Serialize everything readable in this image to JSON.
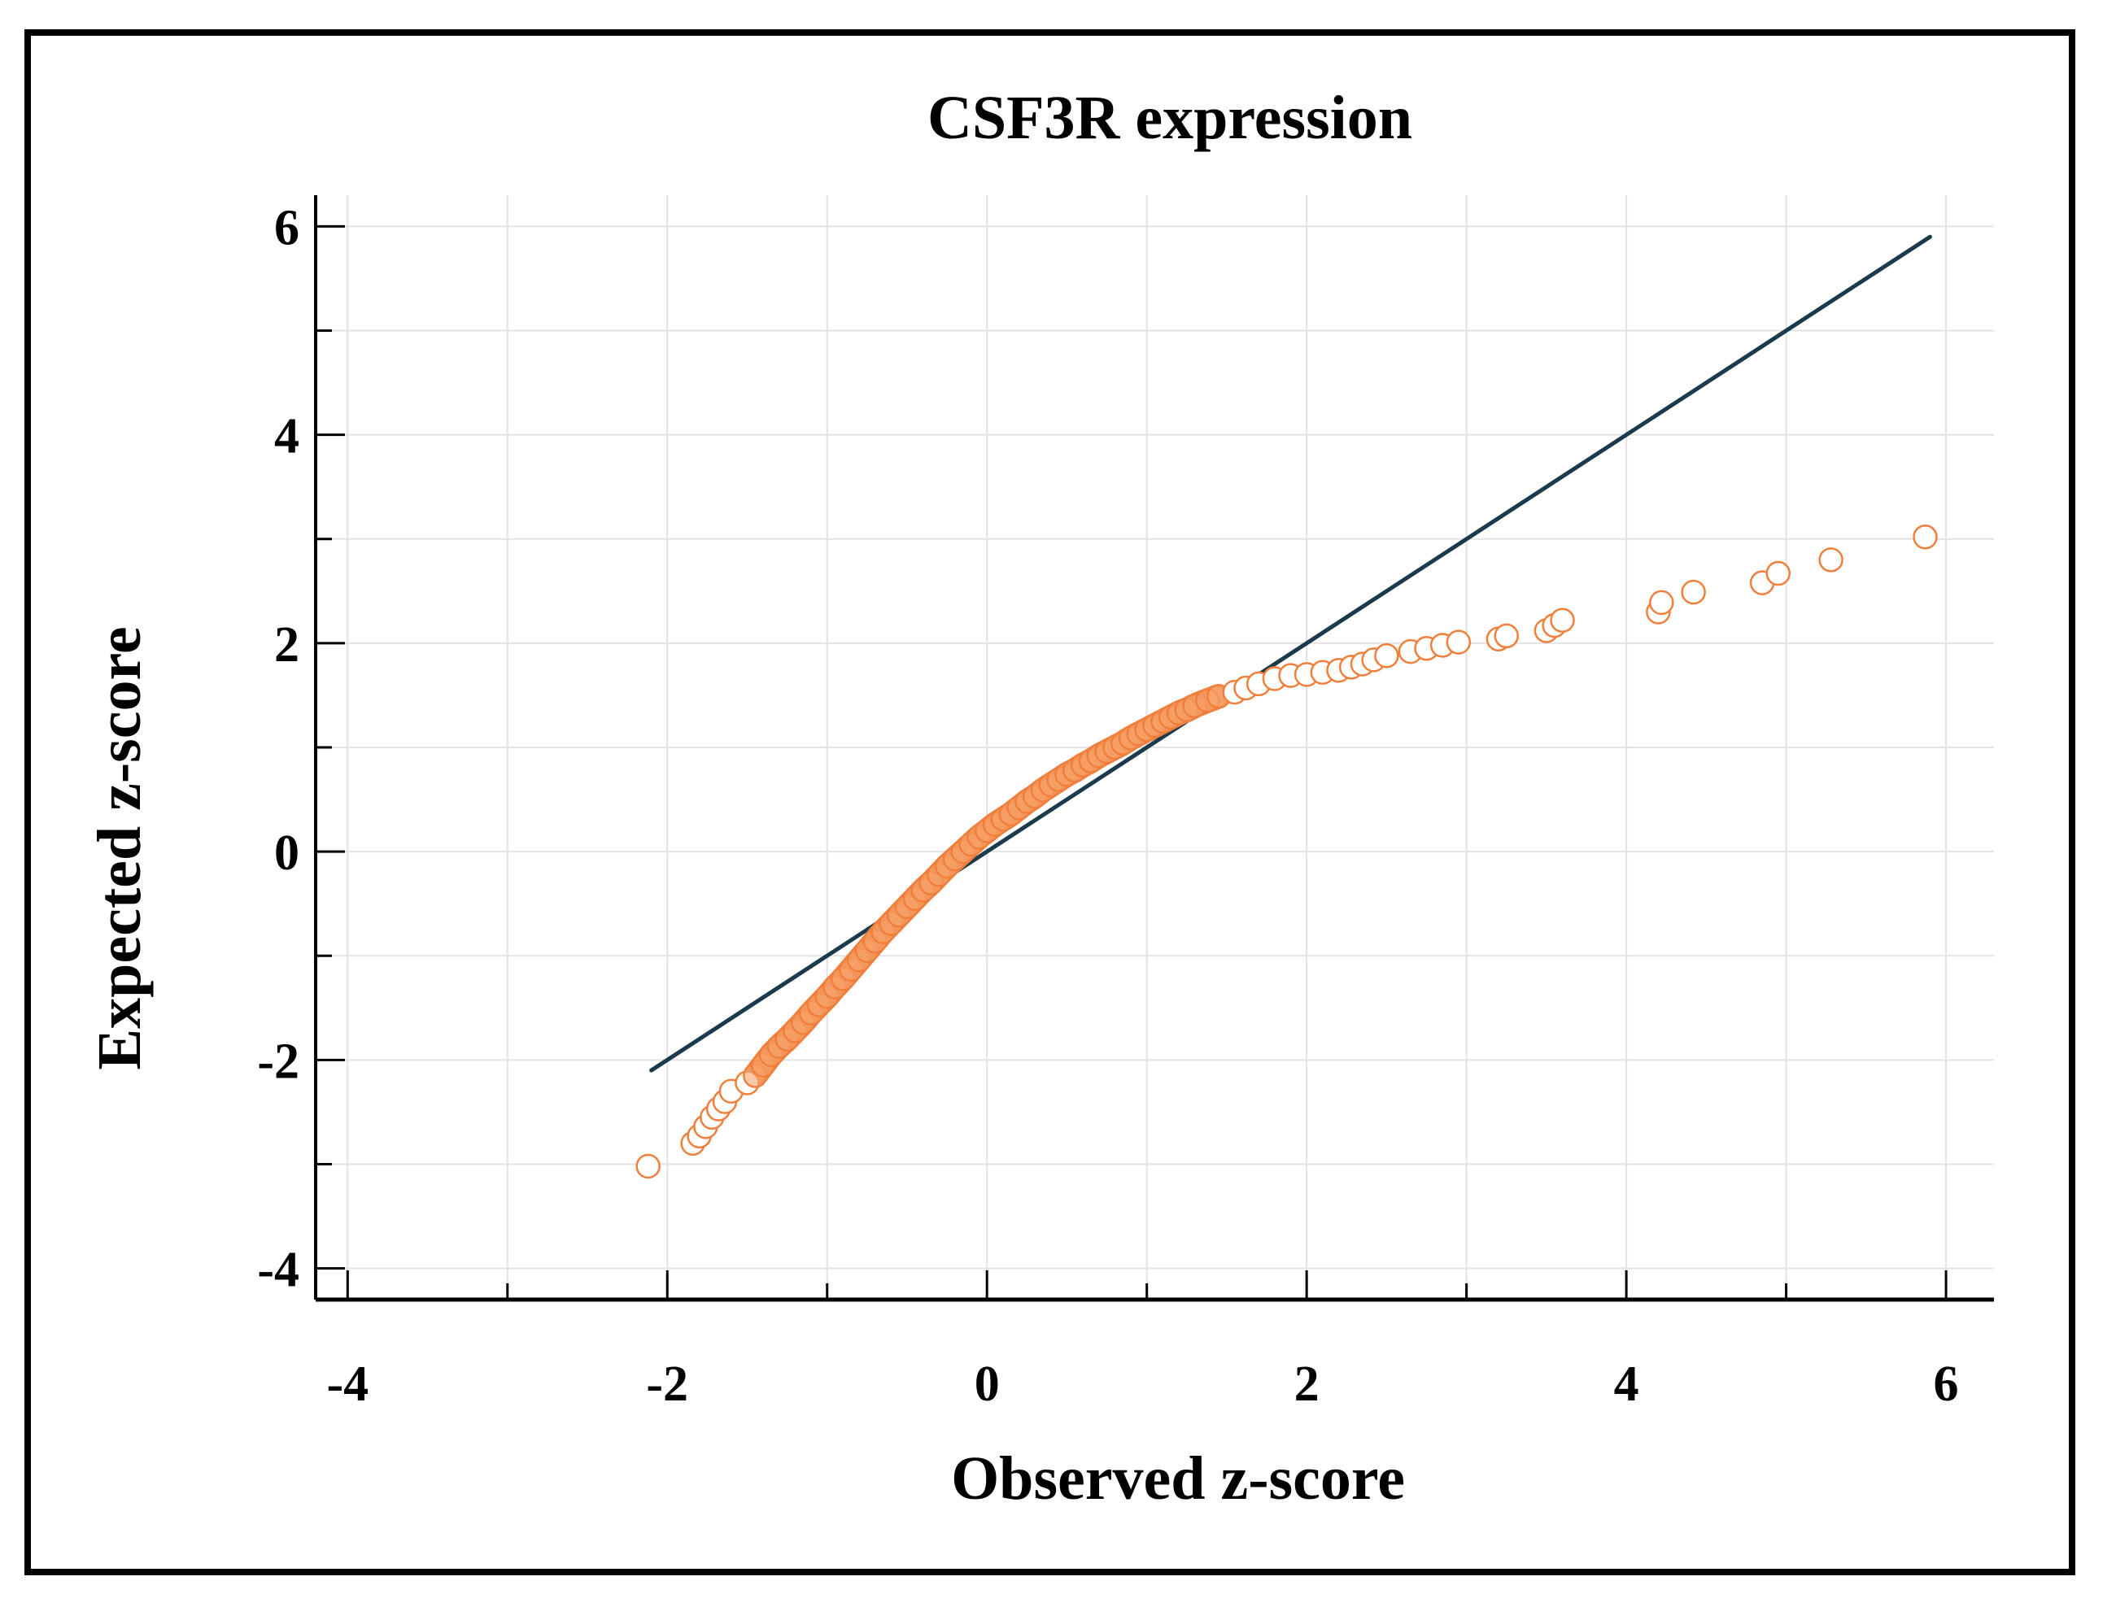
{
  "chart_data": {
    "type": "scatter",
    "title": "CSF3R expression",
    "xlabel": "Observed z-score",
    "ylabel": "Expected z-score",
    "xlim": [
      -4.2,
      6.3
    ],
    "ylim": [
      -4.3,
      6.3
    ],
    "xticks": [
      "-4",
      "-2",
      "0",
      "2",
      "4",
      "6"
    ],
    "yticks": [
      "6",
      "4",
      "2",
      "0",
      "-2",
      "-4"
    ],
    "xtick_values": [
      -4,
      -2,
      0,
      2,
      4,
      6
    ],
    "ytick_values": [
      6,
      4,
      2,
      0,
      -2,
      -4
    ],
    "grid": true,
    "reference_line": {
      "name": "identity line",
      "x": [
        -2.1,
        5.9
      ],
      "y": [
        -2.1,
        5.9
      ],
      "color": "#1b3a4b"
    },
    "series": [
      {
        "name": "observations",
        "marker": "open-circle",
        "color": "#f07f3c",
        "points": [
          [
            -2.12,
            -3.02
          ],
          [
            -1.84,
            -2.8
          ],
          [
            -1.8,
            -2.73
          ],
          [
            -1.76,
            -2.64
          ],
          [
            -1.72,
            -2.55
          ],
          [
            -1.68,
            -2.47
          ],
          [
            -1.64,
            -2.4
          ],
          [
            -1.6,
            -2.3
          ],
          [
            -1.5,
            -2.22
          ],
          [
            -1.45,
            -2.15
          ],
          [
            -1.4,
            -2.05
          ],
          [
            -1.35,
            -1.95
          ],
          [
            -1.3,
            -1.87
          ],
          [
            -1.25,
            -1.8
          ],
          [
            -1.2,
            -1.72
          ],
          [
            -1.15,
            -1.64
          ],
          [
            -1.1,
            -1.55
          ],
          [
            -1.05,
            -1.47
          ],
          [
            -1.0,
            -1.39
          ],
          [
            -0.95,
            -1.3
          ],
          [
            -0.9,
            -1.22
          ],
          [
            -0.85,
            -1.13
          ],
          [
            -0.8,
            -1.04
          ],
          [
            -0.75,
            -0.95
          ],
          [
            -0.7,
            -0.86
          ],
          [
            -0.65,
            -0.77
          ],
          [
            -0.6,
            -0.69
          ],
          [
            -0.55,
            -0.61
          ],
          [
            -0.5,
            -0.53
          ],
          [
            -0.45,
            -0.45
          ],
          [
            -0.4,
            -0.37
          ],
          [
            -0.35,
            -0.3
          ],
          [
            -0.3,
            -0.22
          ],
          [
            -0.25,
            -0.14
          ],
          [
            -0.2,
            -0.07
          ],
          [
            -0.15,
            0.0
          ],
          [
            -0.1,
            0.07
          ],
          [
            -0.05,
            0.14
          ],
          [
            0.0,
            0.2
          ],
          [
            0.05,
            0.26
          ],
          [
            0.1,
            0.31
          ],
          [
            0.15,
            0.36
          ],
          [
            0.2,
            0.42
          ],
          [
            0.25,
            0.48
          ],
          [
            0.3,
            0.53
          ],
          [
            0.35,
            0.59
          ],
          [
            0.4,
            0.64
          ],
          [
            0.45,
            0.69
          ],
          [
            0.5,
            0.74
          ],
          [
            0.55,
            0.78
          ],
          [
            0.6,
            0.83
          ],
          [
            0.65,
            0.87
          ],
          [
            0.7,
            0.92
          ],
          [
            0.75,
            0.96
          ],
          [
            0.8,
            1.0
          ],
          [
            0.85,
            1.04
          ],
          [
            0.9,
            1.09
          ],
          [
            0.95,
            1.13
          ],
          [
            1.0,
            1.17
          ],
          [
            1.05,
            1.21
          ],
          [
            1.1,
            1.25
          ],
          [
            1.15,
            1.29
          ],
          [
            1.2,
            1.33
          ],
          [
            1.25,
            1.36
          ],
          [
            1.3,
            1.4
          ],
          [
            1.38,
            1.45
          ],
          [
            1.45,
            1.49
          ],
          [
            1.55,
            1.53
          ],
          [
            1.62,
            1.57
          ],
          [
            1.7,
            1.61
          ],
          [
            1.8,
            1.66
          ],
          [
            1.9,
            1.69
          ],
          [
            2.0,
            1.7
          ],
          [
            2.1,
            1.72
          ],
          [
            2.2,
            1.74
          ],
          [
            2.28,
            1.77
          ],
          [
            2.35,
            1.8
          ],
          [
            2.42,
            1.84
          ],
          [
            2.5,
            1.88
          ],
          [
            2.65,
            1.92
          ],
          [
            2.75,
            1.95
          ],
          [
            2.85,
            1.98
          ],
          [
            2.95,
            2.01
          ],
          [
            3.2,
            2.04
          ],
          [
            3.25,
            2.07
          ],
          [
            3.5,
            2.12
          ],
          [
            3.55,
            2.17
          ],
          [
            3.6,
            2.22
          ],
          [
            4.2,
            2.3
          ],
          [
            4.22,
            2.39
          ],
          [
            4.42,
            2.49
          ],
          [
            4.85,
            2.58
          ],
          [
            4.95,
            2.67
          ],
          [
            5.28,
            2.8
          ],
          [
            5.87,
            3.02
          ]
        ]
      }
    ]
  }
}
